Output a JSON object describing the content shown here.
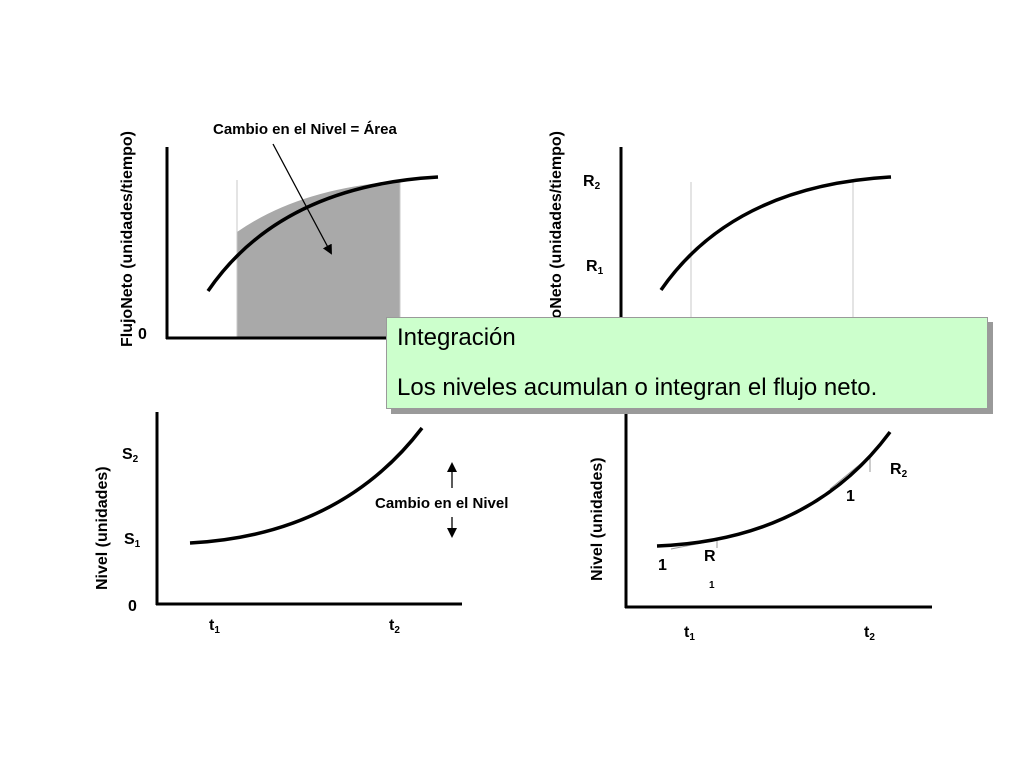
{
  "panel_top_left": {
    "ylabel": "FlujoNeto (unidades/tiempo)",
    "zero_label": "0",
    "annotation": "Cambio en el Nivel = Área"
  },
  "panel_top_right": {
    "ylabel": "FlujoNeto (unidades/tiempo)",
    "r2_base": "R",
    "r2_sub": "2",
    "r1_base": "R",
    "r1_sub": "1"
  },
  "panel_bottom_left": {
    "ylabel": "Nivel (unidades)",
    "s2_base": "S",
    "s2_sub": "2",
    "s1_base": "S",
    "s1_sub": "1",
    "zero_label": "0",
    "t1_base": "t",
    "t1_sub": "1",
    "t2_base": "t",
    "t2_sub": "2",
    "change_label": "Cambio en el Nivel"
  },
  "panel_bottom_right": {
    "ylabel": "Nivel (unidades)",
    "slope2_run": "1",
    "slope2_base": "R",
    "slope2_sub": "2",
    "slope1_run": "1",
    "slope1_base": "R",
    "slope1_sub": "1",
    "t1_base": "t",
    "t1_sub": "1",
    "t2_base": "t",
    "t2_sub": "2"
  },
  "callout": {
    "title": "Integración",
    "text": "Los niveles acumulan o integran el flujo neto."
  },
  "colors": {
    "shade": "#a9a9a9",
    "callout_bg": "#ccffcc",
    "callout_border": "#9a9a9a"
  }
}
